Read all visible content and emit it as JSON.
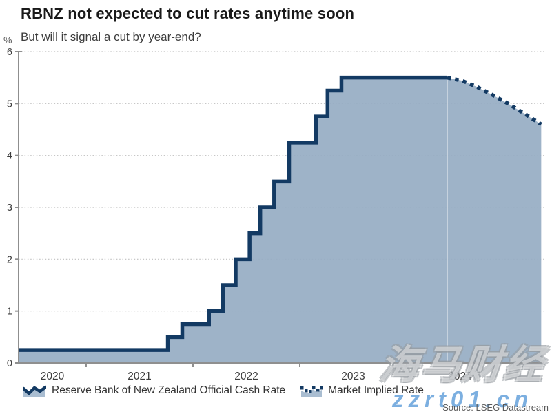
{
  "header": {
    "title": "RBNZ not expected to cut rates anytime soon",
    "subtitle": "But will it signal a cut by year-end?"
  },
  "source": "Source: LSEG Datastream",
  "watermarks": {
    "cn_text": "海马财经",
    "url_text": "zzrt01.cn"
  },
  "legend": [
    {
      "label": "Reserve Bank of New Zealand Official Cash Rate",
      "style": "solid-area"
    },
    {
      "label": "Market Implied Rate",
      "style": "dotted"
    }
  ],
  "colors": {
    "line_navy": "#133a63",
    "area_fill": "#9eb4c8",
    "axis_gray": "#8f8f8f",
    "watermark_blue": "#6aa4dc"
  },
  "chart_data": {
    "type": "area",
    "title": "RBNZ not expected to cut rates anytime soon",
    "subtitle": "But will it signal a cut by year-end?",
    "ylabel": "%",
    "ylim": [
      0,
      6
    ],
    "y_ticks": [
      0,
      1,
      2,
      3,
      4,
      5,
      6
    ],
    "x_range": [
      2020.368,
      2025.29
    ],
    "x_years": [
      2020,
      2021,
      2022,
      2023,
      2024
    ],
    "grid": "horizontal-dotted",
    "legend_position": "bottom",
    "projection_start_x": 2024.38,
    "series": [
      {
        "name": "Reserve Bank of New Zealand Official Cash Rate",
        "style": "solid-step-area",
        "step_changes": [
          [
            2020.368,
            0.25
          ],
          [
            2021.765,
            0.5
          ],
          [
            2021.9,
            0.75
          ],
          [
            2022.15,
            1.0
          ],
          [
            2022.28,
            1.5
          ],
          [
            2022.4,
            2.0
          ],
          [
            2022.53,
            2.5
          ],
          [
            2022.63,
            3.0
          ],
          [
            2022.76,
            3.5
          ],
          [
            2022.9,
            4.25
          ],
          [
            2023.15,
            4.75
          ],
          [
            2023.26,
            5.25
          ],
          [
            2023.39,
            5.5
          ]
        ],
        "end_x": 2024.38,
        "end_value": 5.5
      },
      {
        "name": "Market Implied Rate",
        "style": "dotted-line-area",
        "points": [
          [
            2024.38,
            5.5
          ],
          [
            2024.52,
            5.44
          ],
          [
            2024.66,
            5.32
          ],
          [
            2024.8,
            5.17
          ],
          [
            2024.95,
            5.0
          ],
          [
            2025.1,
            4.81
          ],
          [
            2025.26,
            4.6
          ]
        ]
      }
    ]
  }
}
